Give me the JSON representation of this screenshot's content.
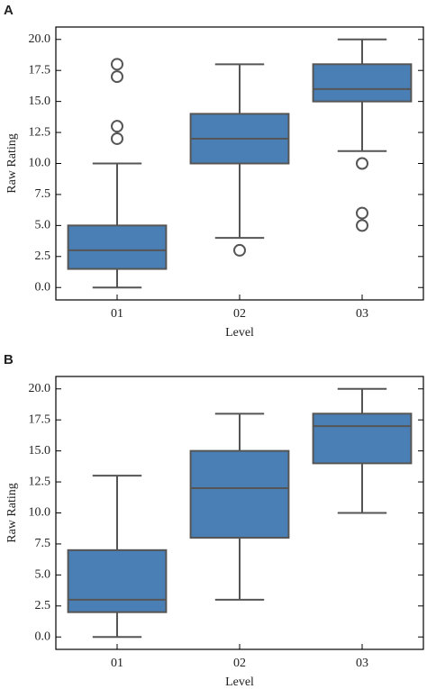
{
  "chart_data": [
    {
      "type": "box",
      "panel_label": "A",
      "y_label": "Raw Rating",
      "x_label": "Level",
      "categories": [
        "01",
        "02",
        "03"
      ],
      "color": "#4a7fb5",
      "boxes": [
        {
          "min": 0,
          "q1": 1.5,
          "median": 3,
          "q3": 5,
          "max": 10,
          "outliers": [
            12,
            13,
            17,
            18
          ]
        },
        {
          "min": 4,
          "q1": 10,
          "median": 12,
          "q3": 14,
          "max": 18,
          "outliers": [
            3
          ]
        },
        {
          "min": 11,
          "q1": 15,
          "median": 16,
          "q3": 18,
          "max": 20,
          "outliers": [
            10,
            6,
            5
          ]
        }
      ],
      "ylim": [
        -1,
        21
      ],
      "yticks": [
        {
          "value": 0,
          "label": "0.0"
        },
        {
          "value": 2.5,
          "label": "2.5"
        },
        {
          "value": 5,
          "label": "5.0"
        },
        {
          "value": 7.5,
          "label": "7.5"
        },
        {
          "value": 10,
          "label": "10.0"
        },
        {
          "value": 12.5,
          "label": "12.5"
        },
        {
          "value": 15,
          "label": "15.0"
        },
        {
          "value": 17.5,
          "label": "17.5"
        },
        {
          "value": 20,
          "label": "20.0"
        }
      ]
    },
    {
      "type": "box",
      "panel_label": "B",
      "y_label": "Raw Rating",
      "x_label": "Level",
      "categories": [
        "01",
        "02",
        "03"
      ],
      "color": "#4a7fb5",
      "boxes": [
        {
          "min": 0,
          "q1": 2,
          "median": 3,
          "q3": 7,
          "max": 13,
          "outliers": []
        },
        {
          "min": 3,
          "q1": 8,
          "median": 12,
          "q3": 15,
          "max": 18,
          "outliers": []
        },
        {
          "min": 10,
          "q1": 14,
          "median": 17,
          "q3": 18,
          "max": 20,
          "outliers": []
        }
      ],
      "ylim": [
        -1,
        21
      ],
      "yticks": [
        {
          "value": 0,
          "label": "0.0"
        },
        {
          "value": 2.5,
          "label": "2.5"
        },
        {
          "value": 5,
          "label": "5.0"
        },
        {
          "value": 7.5,
          "label": "7.5"
        },
        {
          "value": 10,
          "label": "10.0"
        },
        {
          "value": 12.5,
          "label": "12.5"
        },
        {
          "value": 15,
          "label": "15.0"
        },
        {
          "value": 17.5,
          "label": "17.5"
        },
        {
          "value": 20,
          "label": "20.0"
        }
      ]
    }
  ]
}
